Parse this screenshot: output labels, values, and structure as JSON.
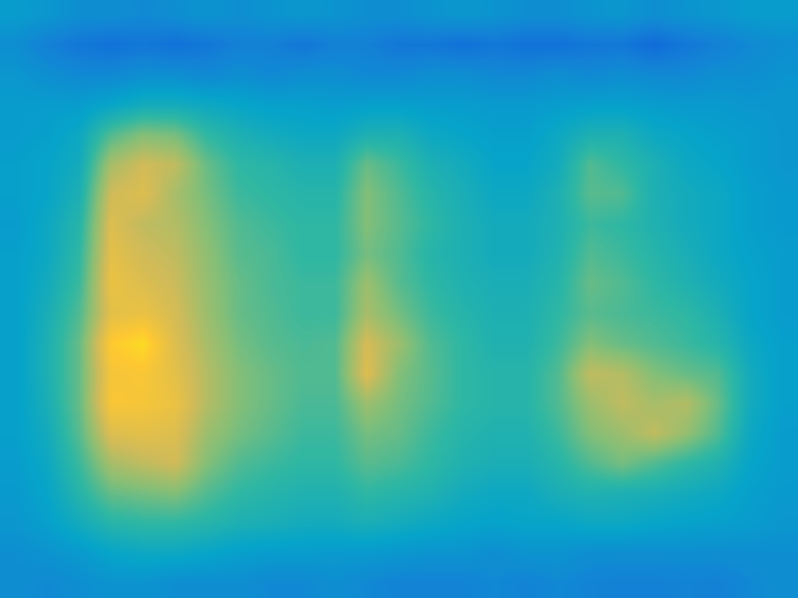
{
  "chart_data": {
    "type": "heatmap",
    "color": "parula",
    "tick_labels": false,
    "color_range": [
      0,
      1
    ],
    "cells": [
      [
        0.35,
        0.33,
        0.3,
        0.3,
        0.28,
        0.3,
        0.32,
        0.3,
        0.32,
        0.33,
        0.32,
        0.3,
        0.3,
        0.32,
        0.33,
        0.32,
        0.3,
        0.3,
        0.32,
        0.33,
        0.3,
        0.32,
        0.33,
        0.35,
        0.35
      ],
      [
        0.3,
        0.25,
        0.22,
        0.2,
        0.22,
        0.2,
        0.22,
        0.25,
        0.25,
        0.22,
        0.25,
        0.25,
        0.22,
        0.22,
        0.2,
        0.22,
        0.2,
        0.2,
        0.22,
        0.22,
        0.18,
        0.22,
        0.25,
        0.28,
        0.3
      ],
      [
        0.33,
        0.3,
        0.28,
        0.28,
        0.3,
        0.3,
        0.28,
        0.3,
        0.28,
        0.3,
        0.3,
        0.28,
        0.28,
        0.3,
        0.3,
        0.28,
        0.28,
        0.3,
        0.28,
        0.3,
        0.28,
        0.28,
        0.3,
        0.3,
        0.32
      ],
      [
        0.35,
        0.35,
        0.35,
        0.38,
        0.42,
        0.42,
        0.4,
        0.38,
        0.36,
        0.36,
        0.35,
        0.36,
        0.36,
        0.35,
        0.35,
        0.34,
        0.34,
        0.35,
        0.36,
        0.36,
        0.35,
        0.34,
        0.34,
        0.33,
        0.33
      ],
      [
        0.35,
        0.36,
        0.4,
        0.55,
        0.62,
        0.6,
        0.5,
        0.45,
        0.42,
        0.4,
        0.4,
        0.45,
        0.45,
        0.4,
        0.38,
        0.36,
        0.36,
        0.4,
        0.45,
        0.45,
        0.4,
        0.38,
        0.36,
        0.35,
        0.33
      ],
      [
        0.36,
        0.38,
        0.42,
        0.68,
        0.75,
        0.72,
        0.58,
        0.5,
        0.48,
        0.45,
        0.45,
        0.58,
        0.52,
        0.45,
        0.42,
        0.38,
        0.38,
        0.42,
        0.55,
        0.5,
        0.45,
        0.4,
        0.38,
        0.35,
        0.33
      ],
      [
        0.36,
        0.38,
        0.45,
        0.75,
        0.78,
        0.68,
        0.6,
        0.52,
        0.5,
        0.48,
        0.48,
        0.62,
        0.55,
        0.48,
        0.44,
        0.4,
        0.4,
        0.45,
        0.56,
        0.55,
        0.45,
        0.42,
        0.4,
        0.36,
        0.34
      ],
      [
        0.35,
        0.4,
        0.48,
        0.78,
        0.72,
        0.7,
        0.62,
        0.55,
        0.52,
        0.5,
        0.5,
        0.62,
        0.56,
        0.5,
        0.45,
        0.42,
        0.42,
        0.45,
        0.52,
        0.5,
        0.46,
        0.42,
        0.4,
        0.36,
        0.34
      ],
      [
        0.36,
        0.4,
        0.5,
        0.8,
        0.75,
        0.72,
        0.64,
        0.56,
        0.54,
        0.5,
        0.5,
        0.6,
        0.55,
        0.48,
        0.45,
        0.42,
        0.42,
        0.46,
        0.55,
        0.52,
        0.48,
        0.44,
        0.4,
        0.37,
        0.35
      ],
      [
        0.36,
        0.42,
        0.52,
        0.82,
        0.78,
        0.74,
        0.65,
        0.58,
        0.54,
        0.52,
        0.52,
        0.66,
        0.56,
        0.5,
        0.46,
        0.44,
        0.44,
        0.48,
        0.58,
        0.55,
        0.5,
        0.46,
        0.42,
        0.38,
        0.35
      ],
      [
        0.36,
        0.44,
        0.55,
        0.8,
        0.82,
        0.76,
        0.66,
        0.58,
        0.55,
        0.52,
        0.52,
        0.68,
        0.6,
        0.52,
        0.48,
        0.45,
        0.45,
        0.5,
        0.56,
        0.54,
        0.52,
        0.5,
        0.45,
        0.38,
        0.35
      ],
      [
        0.36,
        0.45,
        0.58,
        0.88,
        0.92,
        0.78,
        0.68,
        0.6,
        0.56,
        0.54,
        0.55,
        0.76,
        0.66,
        0.55,
        0.5,
        0.46,
        0.46,
        0.52,
        0.62,
        0.58,
        0.55,
        0.52,
        0.48,
        0.4,
        0.36
      ],
      [
        0.36,
        0.45,
        0.58,
        0.85,
        0.86,
        0.8,
        0.7,
        0.62,
        0.58,
        0.55,
        0.55,
        0.78,
        0.62,
        0.56,
        0.5,
        0.48,
        0.48,
        0.55,
        0.72,
        0.7,
        0.62,
        0.58,
        0.55,
        0.42,
        0.36
      ],
      [
        0.36,
        0.44,
        0.58,
        0.86,
        0.85,
        0.82,
        0.7,
        0.62,
        0.58,
        0.54,
        0.54,
        0.66,
        0.6,
        0.55,
        0.5,
        0.48,
        0.48,
        0.55,
        0.66,
        0.72,
        0.68,
        0.7,
        0.58,
        0.42,
        0.36
      ],
      [
        0.36,
        0.42,
        0.56,
        0.78,
        0.8,
        0.78,
        0.66,
        0.6,
        0.56,
        0.52,
        0.52,
        0.6,
        0.58,
        0.52,
        0.48,
        0.46,
        0.46,
        0.52,
        0.62,
        0.66,
        0.72,
        0.65,
        0.55,
        0.4,
        0.35
      ],
      [
        0.35,
        0.4,
        0.52,
        0.68,
        0.72,
        0.75,
        0.62,
        0.55,
        0.52,
        0.5,
        0.5,
        0.56,
        0.54,
        0.5,
        0.46,
        0.44,
        0.44,
        0.48,
        0.55,
        0.6,
        0.55,
        0.5,
        0.46,
        0.38,
        0.35
      ],
      [
        0.34,
        0.38,
        0.48,
        0.58,
        0.6,
        0.62,
        0.55,
        0.5,
        0.48,
        0.46,
        0.46,
        0.5,
        0.48,
        0.46,
        0.42,
        0.4,
        0.4,
        0.44,
        0.46,
        0.45,
        0.44,
        0.42,
        0.4,
        0.36,
        0.34
      ],
      [
        0.33,
        0.36,
        0.42,
        0.48,
        0.5,
        0.5,
        0.48,
        0.45,
        0.44,
        0.42,
        0.42,
        0.44,
        0.42,
        0.4,
        0.38,
        0.37,
        0.38,
        0.38,
        0.4,
        0.4,
        0.38,
        0.37,
        0.36,
        0.35,
        0.33
      ],
      [
        0.3,
        0.32,
        0.34,
        0.38,
        0.4,
        0.4,
        0.38,
        0.36,
        0.35,
        0.35,
        0.34,
        0.34,
        0.33,
        0.32,
        0.32,
        0.3,
        0.32,
        0.32,
        0.3,
        0.3,
        0.3,
        0.3,
        0.3,
        0.3,
        0.3
      ],
      [
        0.3,
        0.28,
        0.3,
        0.32,
        0.32,
        0.3,
        0.3,
        0.3,
        0.28,
        0.28,
        0.3,
        0.28,
        0.26,
        0.26,
        0.26,
        0.28,
        0.26,
        0.28,
        0.26,
        0.25,
        0.25,
        0.26,
        0.25,
        0.28,
        0.3
      ]
    ]
  }
}
